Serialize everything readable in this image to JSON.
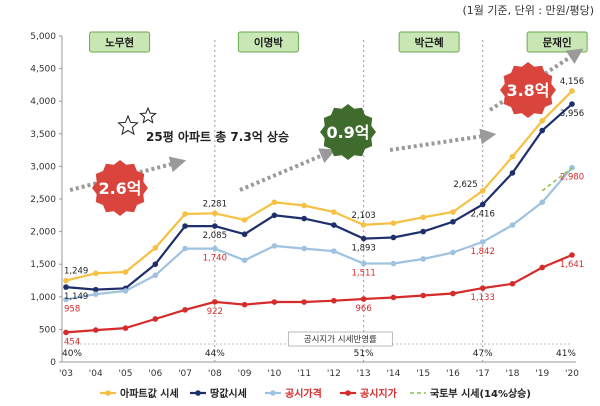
{
  "chart_data": {
    "type": "line",
    "unit_note": "(1월 기준, 단위 : 만원/평당)",
    "categories": [
      "'03",
      "'04",
      "'05",
      "'06",
      "'07",
      "'08",
      "'09",
      "'10",
      "'11",
      "'12",
      "'13",
      "'14",
      "'15",
      "'16",
      "'17",
      "'18",
      "'19",
      "'20"
    ],
    "ylim": [
      0,
      5000
    ],
    "yticks": [
      "0",
      "500",
      "1,000",
      "1,500",
      "2,000",
      "2,500",
      "3,000",
      "3,500",
      "4,000",
      "4,500",
      "5,000"
    ],
    "series": [
      {
        "name": "아파트값 시세",
        "color": "#f6c143",
        "values": [
          1249,
          1360,
          1380,
          1750,
          2270,
          2281,
          2180,
          2450,
          2400,
          2300,
          2103,
          2130,
          2220,
          2300,
          2625,
          3150,
          3700,
          4156
        ]
      },
      {
        "name": "땅값시세",
        "color": "#1e2f6b",
        "values": [
          1149,
          1110,
          1130,
          1500,
          2085,
          2085,
          1960,
          2250,
          2200,
          2100,
          1893,
          1910,
          2000,
          2150,
          2416,
          2900,
          3550,
          3956
        ]
      },
      {
        "name": "공시가격",
        "color": "#9fc2e0",
        "values": [
          958,
          1040,
          1090,
          1330,
          1740,
          1740,
          1560,
          1780,
          1740,
          1700,
          1511,
          1510,
          1580,
          1680,
          1842,
          2100,
          2450,
          2980
        ]
      },
      {
        "name": "공시지가",
        "color": "#d62b2b",
        "values": [
          454,
          490,
          520,
          660,
          800,
          922,
          880,
          920,
          920,
          940,
          966,
          990,
          1020,
          1050,
          1133,
          1200,
          1450,
          1641
        ]
      }
    ],
    "trend_series": {
      "name": "국토부 시세(14%상승)",
      "color": "#8cc152",
      "from_index": 16,
      "from_value": 2625,
      "to_index": 17,
      "to_value": 2980
    },
    "data_labels": [
      {
        "series": 0,
        "index": 0,
        "text": "1,249",
        "pos": "above",
        "color": "#222"
      },
      {
        "series": 1,
        "index": 0,
        "text": "1,149",
        "pos": "below",
        "color": "#222"
      },
      {
        "series": 2,
        "index": 0,
        "text": "958",
        "pos": "below",
        "color": "#d62b2b"
      },
      {
        "series": 3,
        "index": 0,
        "text": "454",
        "pos": "below",
        "color": "#d62b2b"
      },
      {
        "series": 0,
        "index": 5,
        "text": "2,281",
        "pos": "above",
        "color": "#222"
      },
      {
        "series": 1,
        "index": 5,
        "text": "2,085",
        "pos": "below",
        "color": "#222"
      },
      {
        "series": 2,
        "index": 5,
        "text": "1,740",
        "pos": "below",
        "color": "#d62b2b"
      },
      {
        "series": 3,
        "index": 5,
        "text": "922",
        "pos": "below",
        "color": "#d62b2b"
      },
      {
        "series": 0,
        "index": 10,
        "text": "2,103",
        "pos": "above",
        "color": "#222"
      },
      {
        "series": 1,
        "index": 10,
        "text": "1,893",
        "pos": "below",
        "color": "#222"
      },
      {
        "series": 2,
        "index": 10,
        "text": "1,511",
        "pos": "below",
        "color": "#d62b2b"
      },
      {
        "series": 3,
        "index": 10,
        "text": "966",
        "pos": "below",
        "color": "#d62b2b"
      },
      {
        "series": 0,
        "index": 14,
        "text": "2,625",
        "pos": "left",
        "color": "#222"
      },
      {
        "series": 1,
        "index": 14,
        "text": "2,416",
        "pos": "below",
        "color": "#222"
      },
      {
        "series": 2,
        "index": 14,
        "text": "1,842",
        "pos": "below",
        "color": "#d62b2b"
      },
      {
        "series": 3,
        "index": 14,
        "text": "1,133",
        "pos": "below",
        "color": "#d62b2b"
      },
      {
        "series": 0,
        "index": 17,
        "text": "4,156",
        "pos": "above",
        "color": "#222"
      },
      {
        "series": 1,
        "index": 17,
        "text": "3,956",
        "pos": "below",
        "color": "#222"
      },
      {
        "series": 2,
        "index": 17,
        "text": "2,980",
        "pos": "below",
        "color": "#d62b2b"
      },
      {
        "series": 3,
        "index": 17,
        "text": "1,641",
        "pos": "below",
        "color": "#d62b2b"
      }
    ],
    "eras": [
      {
        "name": "노무현",
        "center_index": 1.8
      },
      {
        "name": "이명박",
        "center_index": 6.8
      },
      {
        "name": "박근혜",
        "center_index": 12.2
      },
      {
        "name": "문재인",
        "center_index": 16.5
      }
    ],
    "era_dividers": [
      5,
      10,
      14
    ],
    "growth_badges": [
      {
        "text": "2.6억",
        "color": "#d9453d"
      },
      {
        "text": "0.9억",
        "color": "#3f6b2d"
      },
      {
        "text": "3.8억",
        "color": "#d9453d"
      }
    ],
    "headline": "25평 아파트 총 7.3억 상승",
    "reflection_rates": [
      {
        "text": "40%",
        "index": 0
      },
      {
        "text": "44%",
        "index": 5
      },
      {
        "text": "51%",
        "index": 10
      },
      {
        "text": "47%",
        "index": 14
      },
      {
        "text": "41%",
        "index": 17
      }
    ],
    "reflection_caption": "공시지가 시세반영률",
    "legend": [
      "아파트값 시세",
      "땅값시세",
      "공시가격",
      "공시지가",
      "국토부 시세(14%상승)"
    ]
  }
}
